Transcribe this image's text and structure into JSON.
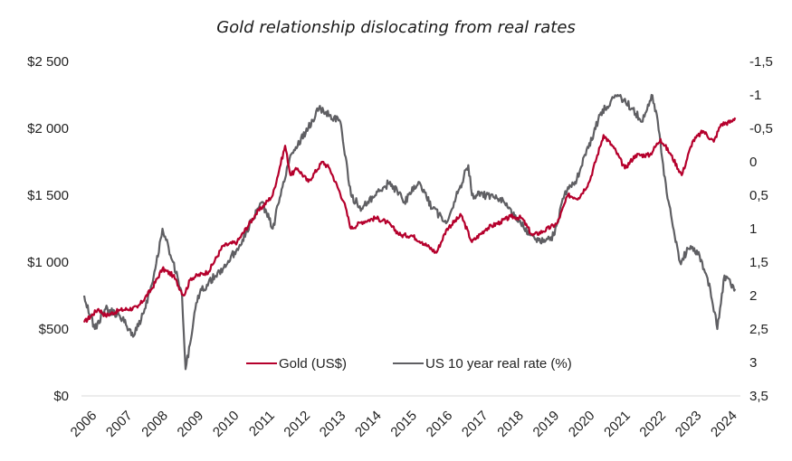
{
  "chart_data": {
    "type": "line",
    "title": "Gold relationship dislocating from real rates",
    "xlabel": "",
    "ylabel": "",
    "y2label": "",
    "x_ticks": [
      "2006",
      "2007",
      "2008",
      "2009",
      "2010",
      "2011",
      "2012",
      "2013",
      "2014",
      "2015",
      "2016",
      "2017",
      "2018",
      "2019",
      "2020",
      "2021",
      "2022",
      "2023",
      "2024"
    ],
    "x_range": [
      2006,
      2024.3
    ],
    "y_left": {
      "ylim": [
        0,
        2500
      ],
      "ticks": [
        0,
        500,
        1000,
        1500,
        2000,
        2500
      ],
      "tick_labels": [
        "$0",
        "$500",
        "$1 000",
        "$1 500",
        "$2 000",
        "$2 500"
      ]
    },
    "y_right": {
      "ylim": [
        -1.5,
        3.5
      ],
      "inverted": true,
      "ticks": [
        -1.5,
        -1,
        -0.5,
        0,
        0.5,
        1,
        1.5,
        2,
        2.5,
        3,
        3.5
      ],
      "tick_labels": [
        "-1,5",
        "-1",
        "-0,5",
        "0",
        "0,5",
        "1",
        "1,5",
        "2",
        "2,5",
        "3",
        "3,5"
      ]
    },
    "grid": false,
    "legend_position": "bottom-center",
    "series": [
      {
        "name": "Gold (US$)",
        "axis": "left",
        "color": "#b5002c",
        "x": [
          2006.0,
          2006.4,
          2006.6,
          2007.0,
          2007.5,
          2007.9,
          2008.2,
          2008.5,
          2008.8,
          2009.0,
          2009.5,
          2009.9,
          2010.3,
          2010.8,
          2011.3,
          2011.65,
          2011.8,
          2012.0,
          2012.3,
          2012.7,
          2012.9,
          2013.3,
          2013.5,
          2013.8,
          2014.2,
          2014.5,
          2014.9,
          2015.2,
          2015.5,
          2015.9,
          2016.2,
          2016.6,
          2016.9,
          2017.3,
          2017.7,
          2018.0,
          2018.3,
          2018.6,
          2018.9,
          2019.3,
          2019.6,
          2019.9,
          2020.2,
          2020.6,
          2020.9,
          2021.2,
          2021.5,
          2021.9,
          2022.2,
          2022.5,
          2022.8,
          2023.1,
          2023.4,
          2023.7,
          2023.9,
          2024.2,
          2024.3
        ],
        "values": [
          550,
          650,
          600,
          640,
          660,
          800,
          950,
          900,
          750,
          880,
          930,
          1120,
          1150,
          1350,
          1500,
          1870,
          1650,
          1700,
          1600,
          1750,
          1700,
          1450,
          1250,
          1300,
          1330,
          1300,
          1200,
          1200,
          1150,
          1070,
          1250,
          1350,
          1150,
          1250,
          1300,
          1340,
          1330,
          1200,
          1230,
          1290,
          1500,
          1480,
          1600,
          1950,
          1850,
          1700,
          1800,
          1800,
          1920,
          1800,
          1650,
          1900,
          1980,
          1900,
          2030,
          2050,
          2080
        ]
      },
      {
        "name": "US 10 year real rate (%)",
        "axis": "right",
        "color": "#5f5f63",
        "x": [
          2006.0,
          2006.3,
          2006.6,
          2007.0,
          2007.4,
          2007.7,
          2008.0,
          2008.2,
          2008.5,
          2008.75,
          2008.85,
          2009.2,
          2009.5,
          2009.9,
          2010.3,
          2010.7,
          2011.0,
          2011.3,
          2011.6,
          2011.8,
          2012.3,
          2012.6,
          2012.9,
          2013.2,
          2013.5,
          2013.8,
          2014.2,
          2014.6,
          2015.0,
          2015.4,
          2015.8,
          2016.2,
          2016.4,
          2016.8,
          2016.9,
          2017.3,
          2017.8,
          2018.2,
          2018.6,
          2018.9,
          2019.2,
          2019.5,
          2019.8,
          2020.1,
          2020.5,
          2020.8,
          2021.0,
          2021.4,
          2021.7,
          2021.95,
          2022.1,
          2022.3,
          2022.5,
          2022.75,
          2023.0,
          2023.3,
          2023.6,
          2023.8,
          2024.0,
          2024.3
        ],
        "values": [
          2.0,
          2.5,
          2.2,
          2.3,
          2.6,
          2.2,
          1.6,
          1.0,
          1.5,
          2.0,
          3.1,
          2.0,
          1.8,
          1.6,
          1.3,
          0.9,
          0.6,
          1.0,
          0.3,
          -0.1,
          -0.5,
          -0.8,
          -0.7,
          -0.6,
          0.5,
          0.7,
          0.5,
          0.3,
          0.6,
          0.3,
          0.7,
          0.9,
          0.6,
          0.05,
          0.5,
          0.5,
          0.6,
          0.9,
          1.1,
          1.2,
          1.1,
          0.5,
          0.3,
          -0.1,
          -0.7,
          -0.9,
          -1.0,
          -0.8,
          -0.6,
          -1.0,
          -0.7,
          0.2,
          0.8,
          1.5,
          1.3,
          1.4,
          1.9,
          2.5,
          1.7,
          1.9
        ]
      }
    ]
  }
}
